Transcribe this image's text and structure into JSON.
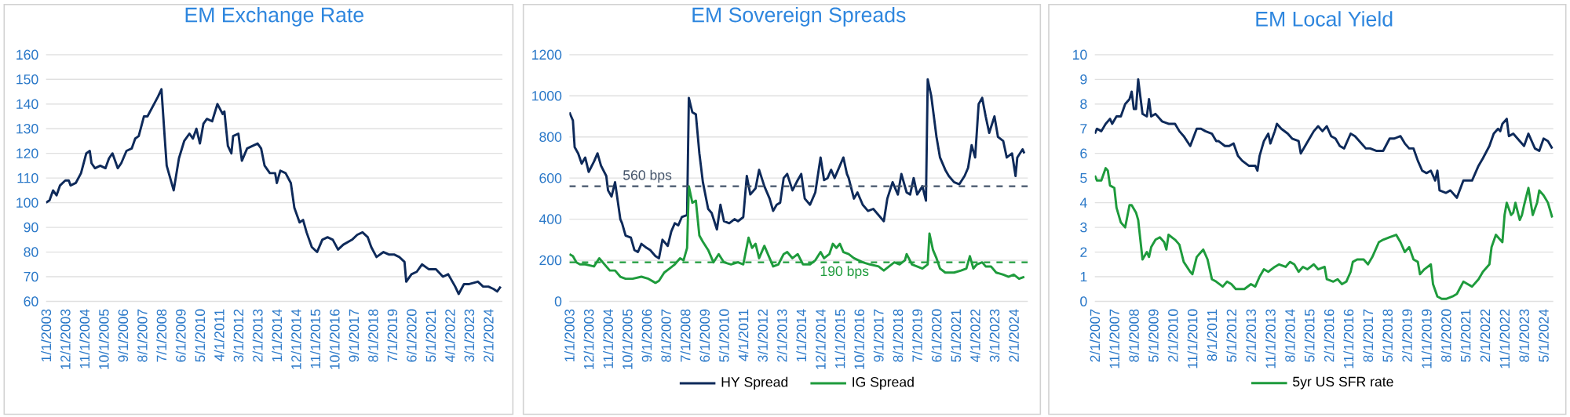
{
  "chart_data": [
    {
      "type": "line",
      "title": "EM Exchange Rate",
      "grid": "y",
      "legend": false,
      "xlim": [
        "2003-01-01",
        "2024-10-01"
      ],
      "ylim": [
        60,
        160
      ],
      "yticks": [
        60,
        70,
        80,
        90,
        100,
        110,
        120,
        130,
        140,
        150,
        160
      ],
      "xticks": [
        {
          "value": "2003-01-01",
          "label": "1/1/2003"
        },
        {
          "value": "2003-12-01",
          "label": "12/1/2003"
        },
        {
          "value": "2004-11-01",
          "label": "11/1/2004"
        },
        {
          "value": "2005-10-01",
          "label": "10/1/2005"
        },
        {
          "value": "2006-09-01",
          "label": "9/1/2006"
        },
        {
          "value": "2007-08-01",
          "label": "8/1/2007"
        },
        {
          "value": "2008-07-01",
          "label": "7/1/2008"
        },
        {
          "value": "2009-06-01",
          "label": "6/1/2009"
        },
        {
          "value": "2010-05-01",
          "label": "5/1/2010"
        },
        {
          "value": "2011-04-01",
          "label": "4/1/2011"
        },
        {
          "value": "2012-03-01",
          "label": "3/1/2012"
        },
        {
          "value": "2013-02-01",
          "label": "2/1/2013"
        },
        {
          "value": "2014-01-01",
          "label": "1/1/2014"
        },
        {
          "value": "2014-12-01",
          "label": "12/1/2014"
        },
        {
          "value": "2015-11-01",
          "label": "11/1/2015"
        },
        {
          "value": "2016-10-01",
          "label": "10/1/2016"
        },
        {
          "value": "2017-09-01",
          "label": "9/1/2017"
        },
        {
          "value": "2018-08-01",
          "label": "8/1/2018"
        },
        {
          "value": "2019-07-01",
          "label": "7/1/2019"
        },
        {
          "value": "2020-06-01",
          "label": "6/1/2020"
        },
        {
          "value": "2021-05-01",
          "label": "5/1/2021"
        },
        {
          "value": "2022-04-01",
          "label": "4/1/2022"
        },
        {
          "value": "2023-03-01",
          "label": "3/1/2023"
        },
        {
          "value": "2024-02-01",
          "label": "2/1/2024"
        }
      ],
      "series": [
        {
          "color": "#0e2a5a",
          "x": [
            "2003-01",
            "2003-03",
            "2003-05",
            "2003-07",
            "2003-09",
            "2003-12",
            "2004-02",
            "2004-03",
            "2004-06",
            "2004-09",
            "2004-12",
            "2005-02",
            "2005-03",
            "2005-05",
            "2005-08",
            "2005-11",
            "2006-01",
            "2006-03",
            "2006-06",
            "2006-08",
            "2006-11",
            "2007-02",
            "2007-04",
            "2007-06",
            "2007-09",
            "2007-11",
            "2008-02",
            "2008-05",
            "2008-07",
            "2008-09",
            "2008-10",
            "2008-12",
            "2009-02",
            "2009-05",
            "2009-08",
            "2009-11",
            "2010-01",
            "2010-03",
            "2010-05",
            "2010-07",
            "2010-09",
            "2010-12",
            "2011-03",
            "2011-06",
            "2011-07",
            "2011-09",
            "2011-11",
            "2011-12",
            "2012-03",
            "2012-05",
            "2012-08",
            "2012-11",
            "2013-02",
            "2013-04",
            "2013-06",
            "2013-09",
            "2013-12",
            "2014-01",
            "2014-03",
            "2014-06",
            "2014-09",
            "2014-11",
            "2015-02",
            "2015-04",
            "2015-06",
            "2015-09",
            "2015-12",
            "2016-03",
            "2016-06",
            "2016-09",
            "2016-12",
            "2017-03",
            "2017-08",
            "2017-11",
            "2018-02",
            "2018-05",
            "2018-07",
            "2018-10",
            "2019-02",
            "2019-05",
            "2019-08",
            "2019-11",
            "2020-02",
            "2020-03",
            "2020-06",
            "2020-09",
            "2020-12",
            "2021-04",
            "2021-08",
            "2021-12",
            "2022-03",
            "2022-07",
            "2022-09",
            "2022-12",
            "2023-03",
            "2023-08",
            "2023-11",
            "2024-02",
            "2024-05",
            "2024-07",
            "2024-09"
          ],
          "values": [
            100,
            101,
            105,
            103,
            107,
            109,
            109,
            107,
            108,
            112,
            120,
            121,
            116,
            114,
            115,
            114,
            118,
            120,
            114,
            116,
            121,
            122,
            126,
            127,
            135,
            135,
            139,
            143,
            146,
            125,
            115,
            110,
            105,
            118,
            125,
            128,
            126,
            130,
            124,
            132,
            134,
            133,
            140,
            136,
            137,
            123,
            120,
            127,
            128,
            117,
            122,
            123,
            124,
            122,
            115,
            112,
            112,
            108,
            113,
            112,
            108,
            98,
            92,
            93,
            88,
            82,
            80,
            85,
            86,
            85,
            81,
            83,
            85,
            87,
            88,
            86,
            82,
            78,
            80,
            79,
            79,
            78,
            76,
            68,
            71,
            72,
            75,
            73,
            73,
            70,
            71,
            66,
            63,
            67,
            67,
            68,
            66,
            66,
            65,
            64,
            66
          ]
        }
      ]
    },
    {
      "type": "line",
      "title": "EM Sovereign Spreads",
      "grid": "y",
      "legend": "bottom",
      "xlim": [
        "2003-01-01",
        "2024-10-01"
      ],
      "ylim": [
        0,
        1200
      ],
      "yticks": [
        0,
        200,
        400,
        600,
        800,
        1000,
        1200
      ],
      "xticks": [
        {
          "value": "2003-01-01",
          "label": "1/1/2003"
        },
        {
          "value": "2003-12-01",
          "label": "12/1/2003"
        },
        {
          "value": "2004-11-01",
          "label": "11/1/2004"
        },
        {
          "value": "2005-10-01",
          "label": "10/1/2005"
        },
        {
          "value": "2006-09-01",
          "label": "9/1/2006"
        },
        {
          "value": "2007-08-01",
          "label": "8/1/2007"
        },
        {
          "value": "2008-07-01",
          "label": "7/1/2008"
        },
        {
          "value": "2009-06-01",
          "label": "6/1/2009"
        },
        {
          "value": "2010-05-01",
          "label": "5/1/2010"
        },
        {
          "value": "2011-04-01",
          "label": "4/1/2011"
        },
        {
          "value": "2012-03-01",
          "label": "3/1/2012"
        },
        {
          "value": "2013-02-01",
          "label": "2/1/2013"
        },
        {
          "value": "2014-01-01",
          "label": "1/1/2014"
        },
        {
          "value": "2014-12-01",
          "label": "12/1/2014"
        },
        {
          "value": "2015-11-01",
          "label": "11/1/2015"
        },
        {
          "value": "2016-10-01",
          "label": "10/1/2016"
        },
        {
          "value": "2017-09-01",
          "label": "9/1/2017"
        },
        {
          "value": "2018-08-01",
          "label": "8/1/2018"
        },
        {
          "value": "2019-07-01",
          "label": "7/1/2019"
        },
        {
          "value": "2020-06-01",
          "label": "6/1/2020"
        },
        {
          "value": "2021-05-01",
          "label": "5/1/2021"
        },
        {
          "value": "2022-04-01",
          "label": "4/1/2022"
        },
        {
          "value": "2023-03-01",
          "label": "3/1/2023"
        },
        {
          "value": "2024-02-01",
          "label": "2/1/2024"
        }
      ],
      "ref_lines": [
        {
          "axis": "y",
          "value": 560,
          "label": "560 bps",
          "color": "#44546a",
          "line_style": "dashed"
        },
        {
          "axis": "y",
          "value": 190,
          "label": "190 bps",
          "color": "#1e9b3c",
          "line_style": "dashed"
        }
      ],
      "series": [
        {
          "name": "HY Spread",
          "color": "#0e2a5a",
          "x": [
            "2003-01",
            "2003-03",
            "2003-04",
            "2003-06",
            "2003-08",
            "2003-10",
            "2003-12",
            "2004-03",
            "2004-05",
            "2004-07",
            "2004-10",
            "2004-11",
            "2005-01",
            "2005-03",
            "2005-04",
            "2005-06",
            "2005-07",
            "2005-09",
            "2005-12",
            "2006-02",
            "2006-04",
            "2006-06",
            "2006-09",
            "2006-11",
            "2007-02",
            "2007-04",
            "2007-06",
            "2007-09",
            "2007-11",
            "2008-01",
            "2008-03",
            "2008-05",
            "2008-08",
            "2008-09",
            "2008-11",
            "2009-01",
            "2009-03",
            "2009-05",
            "2009-08",
            "2009-10",
            "2010-01",
            "2010-03",
            "2010-05",
            "2010-08",
            "2010-11",
            "2011-01",
            "2011-04",
            "2011-06",
            "2011-08",
            "2011-11",
            "2012-01",
            "2012-04",
            "2012-07",
            "2012-09",
            "2012-11",
            "2013-01",
            "2013-03",
            "2013-05",
            "2013-08",
            "2013-11",
            "2014-01",
            "2014-03",
            "2014-06",
            "2014-09",
            "2014-12",
            "2015-02",
            "2015-04",
            "2015-06",
            "2015-08",
            "2015-11",
            "2016-01",
            "2016-03",
            "2016-04",
            "2016-07",
            "2016-09",
            "2016-12",
            "2017-03",
            "2017-06",
            "2017-09",
            "2017-12",
            "2018-02",
            "2018-05",
            "2018-08",
            "2018-10",
            "2019-01",
            "2019-03",
            "2019-05",
            "2019-07",
            "2019-10",
            "2019-12",
            "2020-01",
            "2020-03",
            "2020-06",
            "2020-08",
            "2020-11",
            "2021-01",
            "2021-04",
            "2021-07",
            "2021-10",
            "2021-12",
            "2022-02",
            "2022-04",
            "2022-06",
            "2022-08",
            "2022-10",
            "2022-12",
            "2023-03",
            "2023-05",
            "2023-08",
            "2023-10",
            "2024-01",
            "2024-03",
            "2024-04",
            "2024-07",
            "2024-08"
          ],
          "values": [
            920,
            880,
            750,
            720,
            670,
            700,
            630,
            680,
            720,
            660,
            610,
            540,
            510,
            580,
            520,
            400,
            380,
            320,
            310,
            250,
            240,
            280,
            260,
            250,
            220,
            210,
            300,
            270,
            340,
            380,
            370,
            410,
            420,
            990,
            920,
            910,
            720,
            580,
            450,
            430,
            350,
            470,
            390,
            380,
            400,
            390,
            410,
            610,
            520,
            550,
            640,
            560,
            500,
            440,
            470,
            480,
            600,
            620,
            540,
            590,
            620,
            500,
            470,
            530,
            700,
            590,
            600,
            640,
            600,
            660,
            700,
            620,
            600,
            500,
            530,
            470,
            440,
            450,
            420,
            390,
            500,
            580,
            520,
            620,
            530,
            520,
            600,
            520,
            560,
            490,
            1080,
            1000,
            800,
            700,
            640,
            610,
            580,
            570,
            610,
            650,
            760,
            700,
            960,
            990,
            900,
            820,
            900,
            800,
            780,
            700,
            720,
            610,
            700,
            740,
            720
          ]
        },
        {
          "name": "IG Spread",
          "color": "#1e9b3c",
          "x": [
            "2003-01",
            "2003-03",
            "2003-05",
            "2003-07",
            "2003-10",
            "2004-03",
            "2004-06",
            "2004-09",
            "2004-12",
            "2005-03",
            "2005-06",
            "2005-09",
            "2006-01",
            "2006-06",
            "2006-10",
            "2007-02",
            "2007-04",
            "2007-07",
            "2007-10",
            "2008-01",
            "2008-04",
            "2008-06",
            "2008-08",
            "2008-09",
            "2008-11",
            "2009-01",
            "2009-03",
            "2009-05",
            "2009-08",
            "2009-11",
            "2010-02",
            "2010-05",
            "2010-09",
            "2011-01",
            "2011-04",
            "2011-07",
            "2011-09",
            "2011-11",
            "2012-01",
            "2012-04",
            "2012-07",
            "2012-09",
            "2012-12",
            "2013-03",
            "2013-05",
            "2013-08",
            "2013-11",
            "2014-02",
            "2014-06",
            "2014-09",
            "2014-12",
            "2015-02",
            "2015-05",
            "2015-07",
            "2015-09",
            "2015-11",
            "2016-01",
            "2016-04",
            "2016-07",
            "2016-12",
            "2017-04",
            "2017-09",
            "2017-12",
            "2018-03",
            "2018-06",
            "2018-09",
            "2018-12",
            "2019-01",
            "2019-04",
            "2019-07",
            "2019-10",
            "2020-01",
            "2020-02",
            "2020-04",
            "2020-06",
            "2020-08",
            "2020-11",
            "2021-04",
            "2021-08",
            "2021-11",
            "2022-01",
            "2022-03",
            "2022-05",
            "2022-08",
            "2022-10",
            "2023-01",
            "2023-04",
            "2023-08",
            "2023-11",
            "2024-02",
            "2024-05",
            "2024-08"
          ],
          "values": [
            230,
            220,
            190,
            180,
            180,
            170,
            210,
            180,
            150,
            150,
            120,
            110,
            110,
            120,
            110,
            90,
            100,
            140,
            160,
            180,
            210,
            200,
            260,
            560,
            480,
            490,
            320,
            290,
            250,
            190,
            230,
            190,
            180,
            190,
            180,
            310,
            260,
            280,
            210,
            270,
            210,
            170,
            180,
            230,
            240,
            210,
            230,
            180,
            180,
            200,
            240,
            210,
            230,
            280,
            260,
            280,
            240,
            230,
            210,
            190,
            180,
            170,
            150,
            170,
            190,
            180,
            200,
            230,
            180,
            170,
            160,
            180,
            330,
            250,
            210,
            160,
            140,
            140,
            150,
            160,
            220,
            160,
            180,
            190,
            170,
            170,
            140,
            130,
            120,
            130,
            110,
            120
          ]
        }
      ]
    },
    {
      "type": "line",
      "title": "EM Local Yield",
      "grid": "y",
      "legend": "bottom",
      "xlim": [
        "2007-02-01",
        "2024-09-15"
      ],
      "ylim": [
        0,
        10
      ],
      "yticks": [
        0,
        1,
        2,
        3,
        4,
        5,
        6,
        7,
        8,
        9,
        10
      ],
      "xticks": [
        {
          "value": "2007-02-01",
          "label": "2/1/2007"
        },
        {
          "value": "2007-11-01",
          "label": "11/1/2007"
        },
        {
          "value": "2008-08-01",
          "label": "8/1/2008"
        },
        {
          "value": "2009-05-01",
          "label": "5/1/2009"
        },
        {
          "value": "2010-02-01",
          "label": "2/1/2010"
        },
        {
          "value": "2010-11-01",
          "label": "11/1/2010"
        },
        {
          "value": "2011-08-01",
          "label": "8/1/2011"
        },
        {
          "value": "2012-05-01",
          "label": "5/1/2012"
        },
        {
          "value": "2013-02-01",
          "label": "2/1/2013"
        },
        {
          "value": "2013-11-01",
          "label": "11/1/2013"
        },
        {
          "value": "2014-08-01",
          "label": "8/1/2014"
        },
        {
          "value": "2015-05-01",
          "label": "5/1/2015"
        },
        {
          "value": "2016-02-01",
          "label": "2/1/2016"
        },
        {
          "value": "2016-11-01",
          "label": "11/1/2016"
        },
        {
          "value": "2017-08-01",
          "label": "8/1/2017"
        },
        {
          "value": "2018-05-01",
          "label": "5/1/2018"
        },
        {
          "value": "2019-02-01",
          "label": "2/1/2019"
        },
        {
          "value": "2019-11-01",
          "label": "11/1/2019"
        },
        {
          "value": "2020-08-01",
          "label": "8/1/2020"
        },
        {
          "value": "2021-05-01",
          "label": "5/1/2021"
        },
        {
          "value": "2022-02-01",
          "label": "2/1/2022"
        },
        {
          "value": "2022-11-01",
          "label": "11/1/2022"
        },
        {
          "value": "2023-08-01",
          "label": "8/1/2023"
        },
        {
          "value": "2024-05-01",
          "label": "5/1/2024"
        }
      ],
      "series": [
        {
          "color": "#0e2a5a",
          "x": [
            "2007-02",
            "2007-03",
            "2007-05",
            "2007-07",
            "2007-09",
            "2007-10",
            "2007-12",
            "2008-02",
            "2008-04",
            "2008-06",
            "2008-07",
            "2008-08",
            "2008-09",
            "2008-10",
            "2008-12",
            "2009-02",
            "2009-03",
            "2009-04",
            "2009-06",
            "2009-09",
            "2009-12",
            "2010-03",
            "2010-05",
            "2010-07",
            "2010-10",
            "2011-01",
            "2011-03",
            "2011-05",
            "2011-08",
            "2011-10",
            "2011-11",
            "2012-02",
            "2012-04",
            "2012-06",
            "2012-08",
            "2012-10",
            "2013-01",
            "2013-04",
            "2013-05",
            "2013-06",
            "2013-08",
            "2013-10",
            "2013-11",
            "2014-01",
            "2014-02",
            "2014-04",
            "2014-07",
            "2014-09",
            "2014-12",
            "2015-01",
            "2015-03",
            "2015-05",
            "2015-07",
            "2015-09",
            "2015-11",
            "2016-01",
            "2016-03",
            "2016-05",
            "2016-07",
            "2016-09",
            "2016-12",
            "2017-02",
            "2017-04",
            "2017-07",
            "2017-09",
            "2017-12",
            "2018-03",
            "2018-06",
            "2018-08",
            "2018-11",
            "2019-01",
            "2019-03",
            "2019-05",
            "2019-07",
            "2019-09",
            "2019-11",
            "2020-01",
            "2020-03",
            "2020-04",
            "2020-05",
            "2020-08",
            "2020-10",
            "2021-01",
            "2021-04",
            "2021-06",
            "2021-08",
            "2021-11",
            "2022-01",
            "2022-04",
            "2022-06",
            "2022-08",
            "2022-09",
            "2022-10",
            "2022-12",
            "2023-01",
            "2023-03",
            "2023-06",
            "2023-08",
            "2023-10",
            "2024-01",
            "2024-03",
            "2024-05",
            "2024-07",
            "2024-09"
          ],
          "values": [
            6.8,
            7.0,
            6.9,
            7.2,
            7.4,
            7.2,
            7.5,
            7.5,
            8.0,
            8.2,
            8.5,
            7.8,
            7.8,
            9.0,
            7.6,
            7.5,
            8.2,
            7.5,
            7.6,
            7.3,
            7.2,
            7.2,
            6.9,
            6.7,
            6.3,
            7.0,
            7.0,
            6.9,
            6.8,
            6.5,
            6.5,
            6.3,
            6.3,
            6.4,
            5.9,
            5.7,
            5.5,
            5.5,
            5.3,
            5.9,
            6.5,
            6.8,
            6.4,
            6.9,
            7.2,
            7.0,
            6.8,
            6.6,
            6.5,
            6.0,
            6.3,
            6.6,
            6.9,
            7.1,
            6.9,
            7.1,
            6.7,
            6.6,
            6.3,
            6.2,
            6.8,
            6.7,
            6.5,
            6.2,
            6.2,
            6.1,
            6.1,
            6.6,
            6.6,
            6.7,
            6.4,
            6.2,
            6.2,
            5.7,
            5.3,
            5.2,
            5.3,
            4.9,
            5.3,
            4.5,
            4.4,
            4.5,
            4.2,
            4.9,
            4.9,
            4.9,
            5.5,
            5.8,
            6.3,
            6.8,
            7.0,
            6.9,
            7.2,
            7.4,
            6.7,
            6.8,
            6.5,
            6.3,
            6.8,
            6.2,
            6.1,
            6.6,
            6.5,
            6.2
          ]
        },
        {
          "name": "5yr US SFR rate",
          "color": "#1e9b3c",
          "x": [
            "2007-02",
            "2007-03",
            "2007-05",
            "2007-07",
            "2007-08",
            "2007-09",
            "2007-11",
            "2007-12",
            "2008-02",
            "2008-04",
            "2008-06",
            "2008-07",
            "2008-09",
            "2008-10",
            "2008-12",
            "2009-02",
            "2009-03",
            "2009-04",
            "2009-06",
            "2009-08",
            "2009-10",
            "2009-11",
            "2009-12",
            "2010-03",
            "2010-05",
            "2010-07",
            "2010-10",
            "2010-11",
            "2011-01",
            "2011-03",
            "2011-04",
            "2011-06",
            "2011-08",
            "2011-10",
            "2012-01",
            "2012-03",
            "2012-05",
            "2012-07",
            "2012-09",
            "2012-11",
            "2013-02",
            "2013-04",
            "2013-06",
            "2013-08",
            "2013-10",
            "2014-01",
            "2014-03",
            "2014-06",
            "2014-08",
            "2014-10",
            "2014-12",
            "2015-02",
            "2015-04",
            "2015-07",
            "2015-09",
            "2015-12",
            "2016-01",
            "2016-04",
            "2016-06",
            "2016-08",
            "2016-10",
            "2016-12",
            "2017-01",
            "2017-03",
            "2017-06",
            "2017-08",
            "2017-10",
            "2018-01",
            "2018-03",
            "2018-06",
            "2018-09",
            "2018-11",
            "2019-01",
            "2019-03",
            "2019-05",
            "2019-07",
            "2019-08",
            "2019-10",
            "2020-01",
            "2020-02",
            "2020-04",
            "2020-06",
            "2020-08",
            "2020-11",
            "2021-01",
            "2021-04",
            "2021-06",
            "2021-08",
            "2021-11",
            "2022-01",
            "2022-04",
            "2022-05",
            "2022-07",
            "2022-08",
            "2022-10",
            "2022-11",
            "2022-12",
            "2023-02",
            "2023-03",
            "2023-04",
            "2023-06",
            "2023-07",
            "2023-08",
            "2023-10",
            "2023-12",
            "2024-02",
            "2024-03",
            "2024-05",
            "2024-07",
            "2024-09"
          ],
          "values": [
            5.1,
            4.9,
            4.9,
            5.4,
            5.3,
            4.7,
            4.6,
            3.8,
            3.2,
            3.0,
            3.9,
            3.9,
            3.6,
            3.3,
            1.7,
            2.0,
            1.8,
            2.2,
            2.5,
            2.6,
            2.4,
            2.1,
            2.7,
            2.5,
            2.3,
            1.6,
            1.2,
            1.1,
            1.8,
            2.0,
            2.1,
            1.7,
            0.9,
            0.8,
            0.6,
            0.8,
            0.7,
            0.5,
            0.5,
            0.5,
            0.7,
            0.6,
            1.0,
            1.3,
            1.2,
            1.4,
            1.5,
            1.4,
            1.6,
            1.5,
            1.2,
            1.4,
            1.3,
            1.5,
            1.3,
            1.4,
            0.9,
            0.8,
            0.9,
            0.7,
            0.8,
            1.2,
            1.6,
            1.7,
            1.7,
            1.5,
            1.8,
            2.4,
            2.5,
            2.6,
            2.7,
            2.4,
            2.0,
            2.2,
            1.7,
            1.6,
            1.1,
            1.3,
            1.5,
            0.7,
            0.2,
            0.1,
            0.1,
            0.2,
            0.3,
            0.8,
            0.7,
            0.6,
            0.9,
            1.2,
            1.5,
            2.2,
            2.7,
            2.6,
            2.4,
            3.5,
            4.0,
            3.5,
            3.6,
            4.0,
            3.3,
            3.5,
            3.9,
            4.6,
            3.5,
            4.0,
            4.5,
            4.3,
            4.0,
            3.4
          ]
        }
      ]
    }
  ]
}
